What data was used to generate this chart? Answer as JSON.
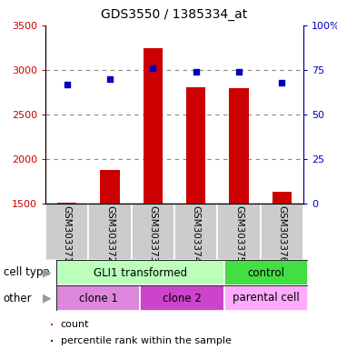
{
  "title": "GDS3550 / 1385334_at",
  "samples": [
    "GSM303371",
    "GSM303372",
    "GSM303373",
    "GSM303374",
    "GSM303375",
    "GSM303376"
  ],
  "counts": [
    1507,
    1880,
    3240,
    2810,
    2800,
    1630
  ],
  "percentile_ranks": [
    67,
    70,
    76,
    74,
    74,
    68
  ],
  "ylim_left": [
    1500,
    3500
  ],
  "ylim_right": [
    0,
    100
  ],
  "yticks_left": [
    1500,
    2000,
    2500,
    3000,
    3500
  ],
  "yticks_right": [
    0,
    25,
    50,
    75,
    100
  ],
  "bar_color": "#cc0000",
  "dot_color": "#0000bb",
  "bar_width": 0.45,
  "ct_groups": [
    {
      "text": "GLI1 transformed",
      "start": 0,
      "end": 4,
      "color": "#bbffbb"
    },
    {
      "text": "control",
      "start": 4,
      "end": 6,
      "color": "#44dd44"
    }
  ],
  "ot_groups": [
    {
      "text": "clone 1",
      "start": 0,
      "end": 2,
      "color": "#dd88dd"
    },
    {
      "text": "clone 2",
      "start": 2,
      "end": 4,
      "color": "#cc44cc"
    },
    {
      "text": "parental cell",
      "start": 4,
      "end": 6,
      "color": "#ffaaff"
    }
  ],
  "legend_count_color": "#cc0000",
  "legend_dot_color": "#0000bb",
  "grid_color": "#888888",
  "left_tick_color": "#cc0000",
  "right_tick_color": "#0000bb",
  "sample_bg_color": "#cccccc",
  "label_row1": "cell type",
  "label_row2": "other",
  "arrow_color": "#999999"
}
